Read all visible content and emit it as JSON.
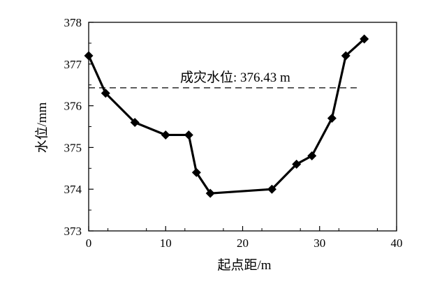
{
  "chart_data": {
    "type": "line",
    "title": "",
    "xlabel": "起点距/m",
    "ylabel": "水位/mm",
    "xlim": [
      0,
      40
    ],
    "ylim": [
      373,
      378
    ],
    "x_ticks": [
      0,
      10,
      20,
      30,
      40
    ],
    "y_ticks": [
      373,
      374,
      375,
      376,
      377,
      378
    ],
    "grid": false,
    "legend": "none",
    "series": [
      {
        "x": [
          0,
          2.2,
          6.0,
          10.0,
          13.0,
          14.0,
          15.8,
          23.8,
          27.0,
          29.0,
          31.6,
          33.4,
          35.8
        ],
        "y": [
          377.2,
          376.3,
          375.6,
          375.3,
          375.3,
          374.4,
          373.9,
          374.0,
          374.6,
          374.8,
          375.7,
          377.2,
          377.6
        ],
        "color": "#000000",
        "marker": "diamond"
      }
    ],
    "reference_line": {
      "y": 376.43,
      "x_range": [
        0,
        35
      ],
      "style": "dashed",
      "label": "成灾水位: 376.43 m"
    }
  }
}
